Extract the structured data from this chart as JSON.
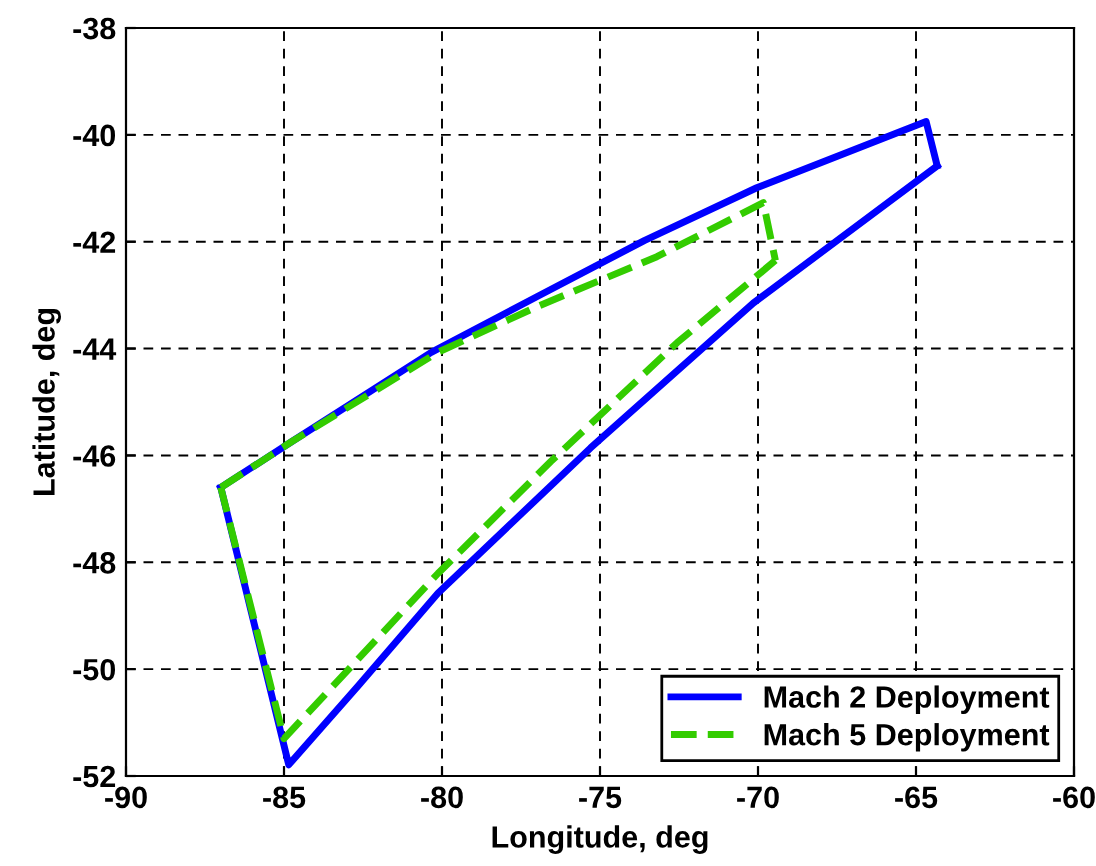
{
  "chart_data": {
    "type": "line",
    "xlabel": "Longitude, deg",
    "ylabel": "Latitude, deg",
    "xlim": [
      -90,
      -60
    ],
    "xticks": [
      -90,
      -85,
      -80,
      -75,
      -70,
      -65,
      -60
    ],
    "ylim": [
      -52,
      -38
    ],
    "yticks": [
      -52,
      -50,
      -48,
      -46,
      -44,
      -42,
      -40,
      -38
    ],
    "grid": true,
    "legend": "bottom right",
    "series": [
      {
        "name": "Mach 2 Deployment",
        "color": "#0000ff",
        "line_style": "solid",
        "x": [
          -87.0,
          -84.75,
          -80.34,
          -76.97,
          -73.6,
          -70.04,
          -64.68,
          -64.33
        ],
        "values": [
          -46.6,
          -45.74,
          -44.07,
          -43.02,
          -41.98,
          -40.99,
          -39.75,
          -40.58
        ]
      },
      {
        "color": "#0000ff",
        "line_style": "solid",
        "x": [
          -64.33,
          -70.15,
          -75.3,
          -80.13,
          -82.65,
          -84.85,
          -87.0
        ],
        "values": [
          -40.58,
          -43.15,
          -45.86,
          -48.58,
          -50.31,
          -51.79,
          -46.6
        ]
      },
      {
        "name": "Mach 5 Deployment",
        "color": "#33cc00",
        "line_style": "dashed",
        "x": [
          -87.0,
          -84.75,
          -80.13,
          -76.97,
          -73.2,
          -69.83,
          -69.45
        ],
        "values": [
          -46.6,
          -45.74,
          -44.07,
          -43.21,
          -42.28,
          -41.27,
          -42.35
        ]
      },
      {
        "color": "#33cc00",
        "line_style": "dashed",
        "x": [
          -69.45,
          -72.56,
          -76.55,
          -80.13,
          -85.0,
          -87.0
        ],
        "values": [
          -42.35,
          -43.89,
          -46.11,
          -48.21,
          -51.3,
          -46.6
        ]
      }
    ]
  }
}
